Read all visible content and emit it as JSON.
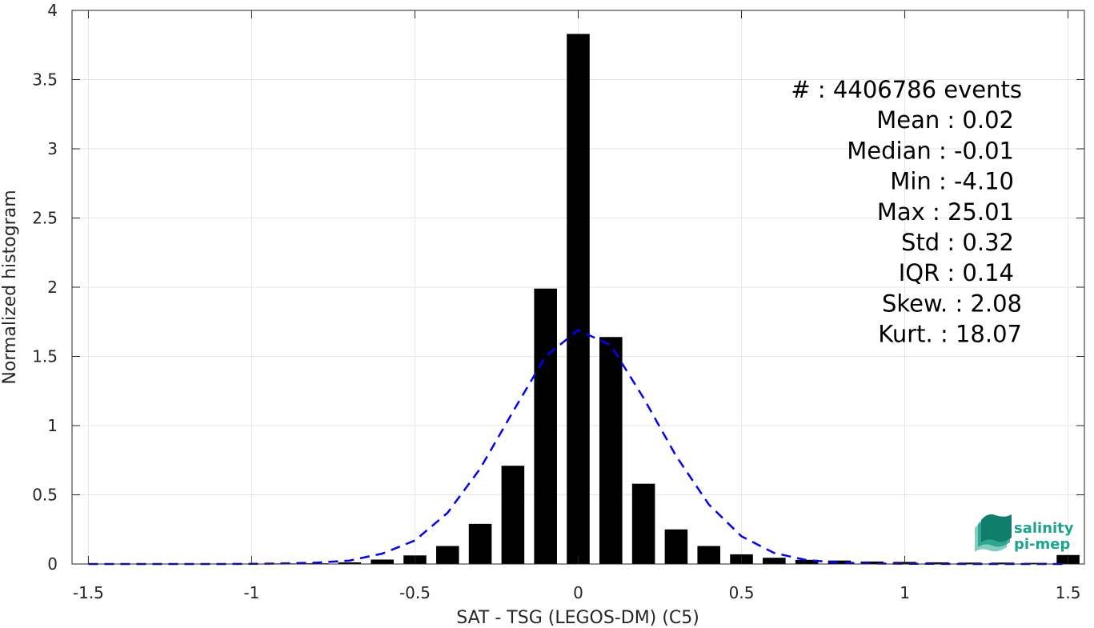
{
  "chart_data": {
    "type": "bar",
    "xlabel": "SAT - TSG (LEGOS-DM) (C5)",
    "ylabel": "Normalized histogram",
    "xlim": [
      -1.55,
      1.55
    ],
    "ylim": [
      0,
      4
    ],
    "x_ticks": [
      -1.5,
      -1,
      -0.5,
      0,
      0.5,
      1,
      1.5
    ],
    "x_tick_labels": [
      "-1.5",
      "-1",
      "-0.5",
      "0",
      "0.5",
      "1",
      "1.5"
    ],
    "y_ticks": [
      0,
      0.5,
      1,
      1.5,
      2,
      2.5,
      3,
      3.5,
      4
    ],
    "y_tick_labels": [
      "0",
      "0.5",
      "1",
      "1.5",
      "2",
      "2.5",
      "3",
      "3.5",
      "4"
    ],
    "grid": true,
    "bar_color": "#000000",
    "bar_width": 0.07,
    "bins": [
      -1.5,
      -1.4,
      -1.3,
      -1.2,
      -1.1,
      -1.0,
      -0.9,
      -0.8,
      -0.7,
      -0.6,
      -0.5,
      -0.4,
      -0.3,
      -0.2,
      -0.1,
      0.0,
      0.1,
      0.2,
      0.3,
      0.4,
      0.5,
      0.6,
      0.7,
      0.8,
      0.9,
      1.0,
      1.1,
      1.2,
      1.3,
      1.4,
      1.5
    ],
    "values": [
      0.002,
      0.002,
      0.002,
      0.002,
      0.003,
      0.003,
      0.004,
      0.005,
      0.012,
      0.032,
      0.062,
      0.13,
      0.29,
      0.71,
      1.99,
      3.83,
      1.64,
      0.58,
      0.25,
      0.13,
      0.07,
      0.045,
      0.03,
      0.025,
      0.018,
      0.015,
      0.012,
      0.01,
      0.01,
      0.008,
      0.065
    ],
    "fit_curve": {
      "style": "dashed",
      "color": "#0000ff",
      "x": [
        -1.5,
        -1.4,
        -1.3,
        -1.2,
        -1.1,
        -1.0,
        -0.9,
        -0.8,
        -0.7,
        -0.6,
        -0.5,
        -0.4,
        -0.3,
        -0.2,
        -0.1,
        0.0,
        0.1,
        0.2,
        0.3,
        0.4,
        0.5,
        0.6,
        0.7,
        0.8,
        0.9,
        1.0,
        1.1,
        1.2,
        1.3,
        1.4,
        1.5
      ],
      "y": [
        0,
        0,
        0,
        0,
        0,
        0.001,
        0.004,
        0.01,
        0.025,
        0.075,
        0.17,
        0.37,
        0.69,
        1.1,
        1.5,
        1.69,
        1.58,
        1.2,
        0.78,
        0.43,
        0.2,
        0.08,
        0.028,
        0.01,
        0.004,
        0.002,
        0.001,
        0,
        0,
        0,
        0
      ]
    }
  },
  "stats": [
    "#  : 4406786 events",
    "Mean : 0.02",
    "Median : -0.01",
    "Min : -4.10",
    "Max : 25.01",
    "Std : 0.32",
    "IQR : 0.14",
    "Skew. : 2.08",
    "Kurt. : 18.07"
  ],
  "logo": {
    "line1": "salinity",
    "line2": "pi-mep",
    "color": "#1aa58c"
  }
}
